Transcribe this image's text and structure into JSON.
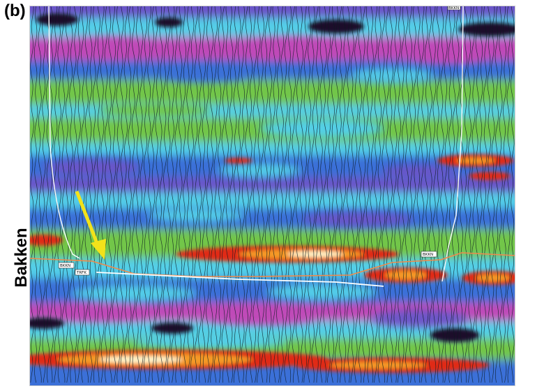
{
  "panel_label": "(b)",
  "side_label": "Bakken",
  "horizon_tags": {
    "bkkn_left": "BKKN",
    "trfk_left": "TRFK",
    "bkkn_right": "BKKN",
    "top_right": "BKKN"
  },
  "colors": {
    "trough_dark": "#1a0f2a",
    "magenta": "#c04ab8",
    "purple": "#6a55c8",
    "blue": "#3a6fd8",
    "cyan": "#52cfe8",
    "green": "#72c64a",
    "red": "#e02a18",
    "orange": "#f49a28",
    "peak_white": "#fff2c8",
    "horizon_orange": "#f08a4a",
    "arrow": "#f2e21a"
  }
}
